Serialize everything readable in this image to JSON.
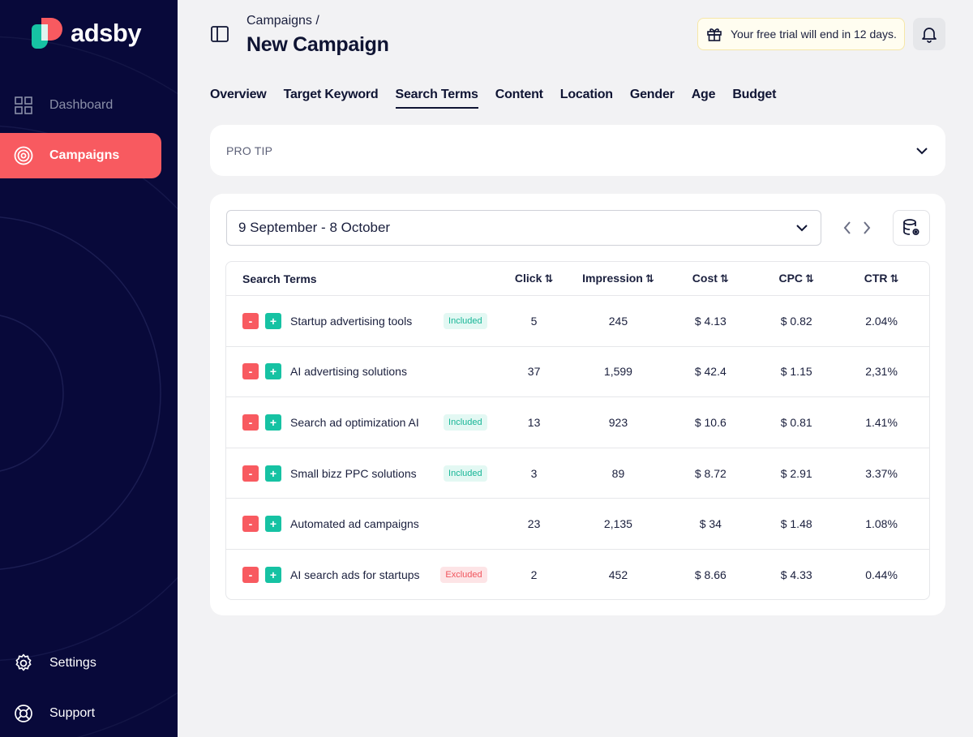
{
  "app": {
    "name": "adsby"
  },
  "sidebar": {
    "items": [
      {
        "label": "Dashboard",
        "icon": "grid-icon"
      },
      {
        "label": "Campaigns",
        "icon": "target-icon"
      }
    ],
    "bottom": [
      {
        "label": "Settings",
        "icon": "gear-icon"
      },
      {
        "label": "Support",
        "icon": "lifebuoy-icon"
      }
    ]
  },
  "header": {
    "breadcrumb": "Campaigns /",
    "title": "New Campaign",
    "trial_text": "Your free trial will end in 12 days."
  },
  "tabs": [
    "Overview",
    "Target Keyword",
    "Search Terms",
    "Content",
    "Location",
    "Gender",
    "Age",
    "Budget"
  ],
  "active_tab": "Search Terms",
  "protip": {
    "label": "PRO TIP"
  },
  "filters": {
    "date_range": "9 September - 8 October"
  },
  "table": {
    "headers": {
      "term": "Search Terms",
      "click": "Click",
      "impression": "Impression",
      "cost": "Cost",
      "cpc": "CPC",
      "ctr": "CTR"
    },
    "minus": "-",
    "plus": "+",
    "rows": [
      {
        "term": "Startup advertising tools",
        "badge": "Included",
        "click": "5",
        "impression": "245",
        "cost": "$ 4.13",
        "cpc": "$ 0.82",
        "ctr": "2.04%"
      },
      {
        "term": "AI advertising solutions",
        "badge": "",
        "click": "37",
        "impression": "1,599",
        "cost": "$ 42.4",
        "cpc": "$ 1.15",
        "ctr": "2,31%"
      },
      {
        "term": "Search ad optimization AI",
        "badge": "Included",
        "click": "13",
        "impression": "923",
        "cost": "$ 10.6",
        "cpc": "$ 0.81",
        "ctr": "1.41%"
      },
      {
        "term": "Small bizz PPC solutions",
        "badge": "Included",
        "click": "3",
        "impression": "89",
        "cost": "$ 8.72",
        "cpc": "$ 2.91",
        "ctr": "3.37%"
      },
      {
        "term": "Automated ad campaigns",
        "badge": "",
        "click": "23",
        "impression": "2,135",
        "cost": "$ 34",
        "cpc": "$ 1.48",
        "ctr": "1.08%"
      },
      {
        "term": "AI search ads for startups",
        "badge": "Excluded",
        "click": "2",
        "impression": "452",
        "cost": "$ 8.66",
        "cpc": "$ 4.33",
        "ctr": "0.44%"
      }
    ]
  },
  "colors": {
    "sidebar_bg": "#08093a",
    "accent_red": "#f85a60",
    "accent_teal": "#16c2a3",
    "page_bg": "#f2f2f4"
  }
}
